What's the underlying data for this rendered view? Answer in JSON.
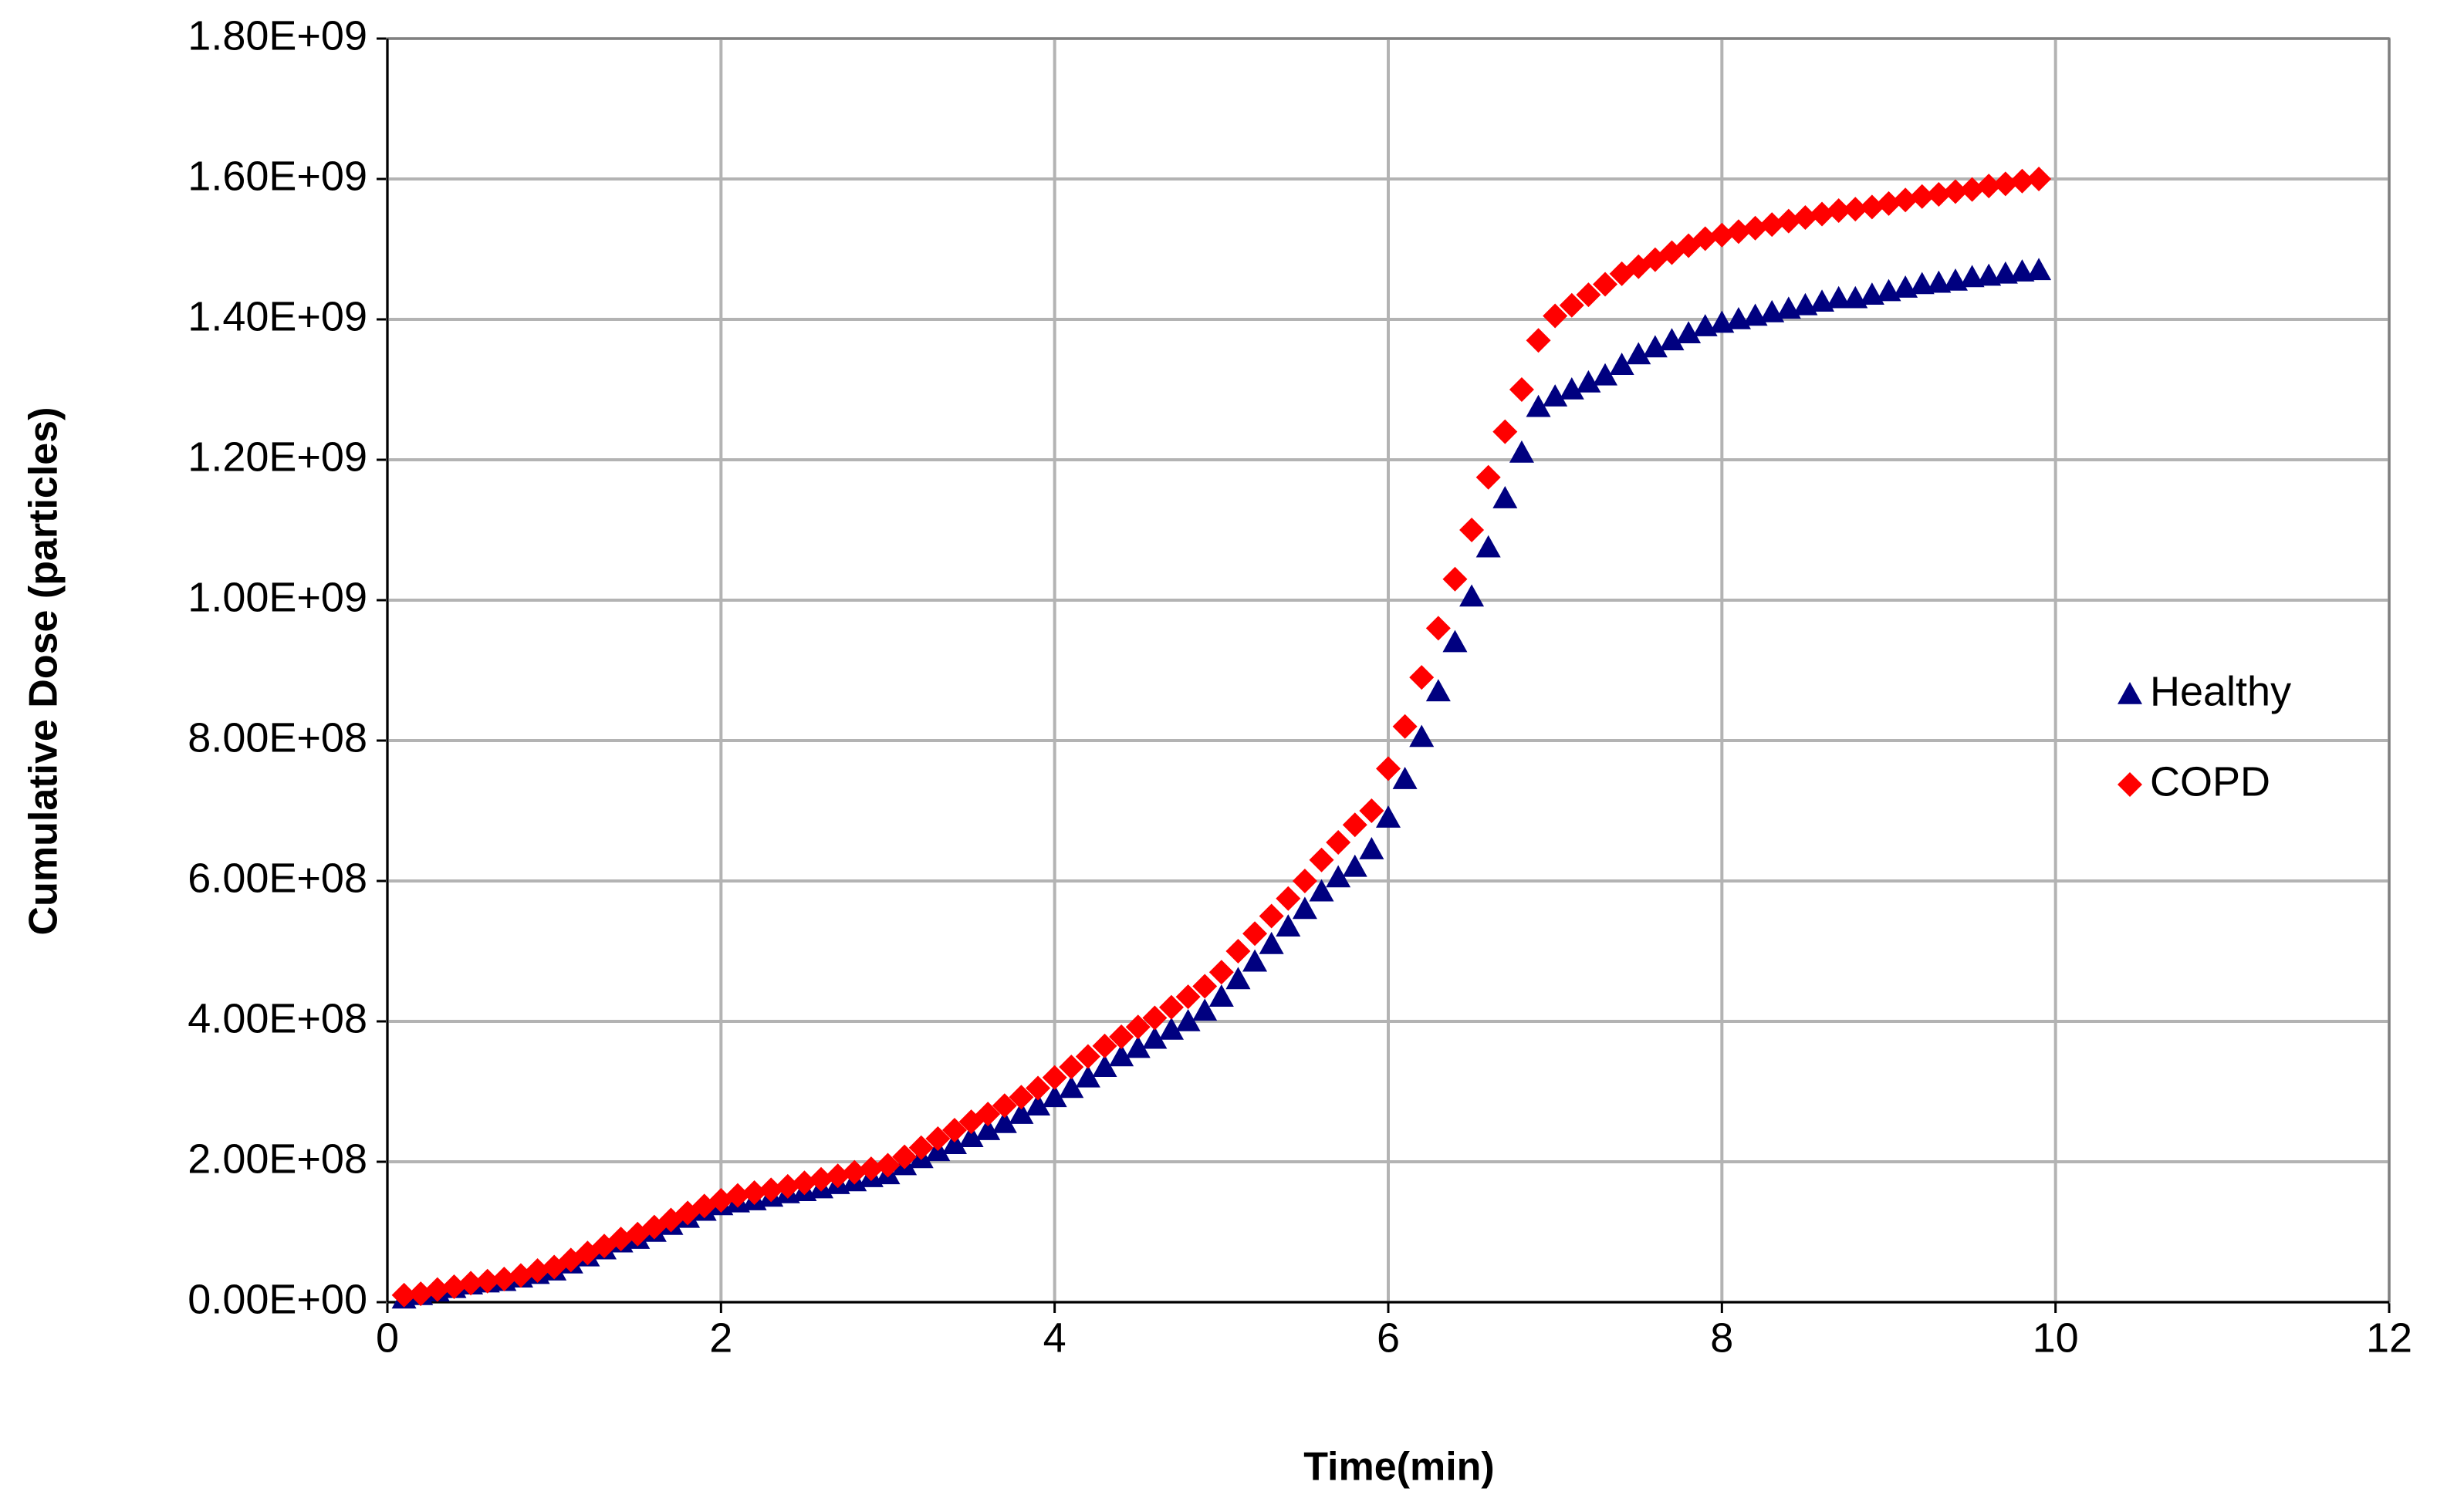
{
  "chart_data": {
    "type": "scatter",
    "x_label": "Time(min)",
    "y_label": "Cumulative  Dose  (particles)",
    "x": [
      0.1,
      0.2,
      0.3,
      0.4,
      0.5,
      0.6,
      0.7,
      0.8,
      0.9,
      1.0,
      1.1,
      1.2,
      1.3,
      1.4,
      1.5,
      1.6,
      1.7,
      1.8,
      1.9,
      2.0,
      2.1,
      2.2,
      2.3,
      2.4,
      2.5,
      2.6,
      2.7,
      2.8,
      2.9,
      3.0,
      3.1,
      3.2,
      3.3,
      3.4,
      3.5,
      3.6,
      3.7,
      3.8,
      3.9,
      4.0,
      4.1,
      4.2,
      4.3,
      4.4,
      4.5,
      4.6,
      4.7,
      4.8,
      4.9,
      5.0,
      5.1,
      5.2,
      5.3,
      5.4,
      5.5,
      5.6,
      5.7,
      5.8,
      5.9,
      6.0,
      6.1,
      6.2,
      6.3,
      6.4,
      6.5,
      6.6,
      6.7,
      6.8,
      6.9,
      7.0,
      7.1,
      7.2,
      7.3,
      7.4,
      7.5,
      7.6,
      7.7,
      7.8,
      7.9,
      8.0,
      8.1,
      8.2,
      8.3,
      8.4,
      8.5,
      8.6,
      8.7,
      8.8,
      8.9,
      9.0,
      9.1,
      9.2,
      9.3,
      9.4,
      9.5,
      9.6,
      9.7,
      9.8,
      9.9
    ],
    "series": [
      {
        "name": "Healthy",
        "color": "#000080",
        "marker": "triangle",
        "values": [
          5000000.0,
          10000000.0,
          15000000.0,
          20000000.0,
          25000000.0,
          28000000.0,
          30000000.0,
          35000000.0,
          40000000.0,
          45000000.0,
          55000000.0,
          65000000.0,
          75000000.0,
          85000000.0,
          90000000.0,
          100000000.0,
          110000000.0,
          120000000.0,
          130000000.0,
          138000000.0,
          142000000.0,
          145000000.0,
          150000000.0,
          155000000.0,
          158000000.0,
          162000000.0,
          168000000.0,
          172000000.0,
          178000000.0,
          182000000.0,
          195000000.0,
          205000000.0,
          215000000.0,
          225000000.0,
          235000000.0,
          245000000.0,
          255000000.0,
          268000000.0,
          280000000.0,
          292000000.0,
          305000000.0,
          320000000.0,
          335000000.0,
          350000000.0,
          362000000.0,
          375000000.0,
          388000000.0,
          400000000.0,
          415000000.0,
          435000000.0,
          460000000.0,
          485000000.0,
          510000000.0,
          535000000.0,
          560000000.0,
          585000000.0,
          605000000.0,
          620000000.0,
          645000000.0,
          690000000.0,
          745000000.0,
          805000000.0,
          870000000.0,
          940000000.0,
          1005000000.0,
          1075000000.0,
          1145000000.0,
          1210000000.0,
          1275000000.0,
          1290000000.0,
          1300000000.0,
          1310000000.0,
          1320000000.0,
          1335000000.0,
          1350000000.0,
          1360000000.0,
          1370000000.0,
          1380000000.0,
          1390000000.0,
          1395000000.0,
          1400000000.0,
          1405000000.0,
          1410000000.0,
          1415000000.0,
          1420000000.0,
          1425000000.0,
          1430000000.0,
          1430000000.0,
          1435000000.0,
          1440000000.0,
          1445000000.0,
          1450000000.0,
          1452000000.0,
          1455000000.0,
          1460000000.0,
          1462000000.0,
          1465000000.0,
          1468000000.0,
          1470000000.0
        ]
      },
      {
        "name": "COPD",
        "color": "#ff0000",
        "marker": "diamond",
        "values": [
          10000000.0,
          12000000.0,
          18000000.0,
          22000000.0,
          27000000.0,
          30000000.0,
          33000000.0,
          38000000.0,
          45000000.0,
          50000000.0,
          60000000.0,
          70000000.0,
          80000000.0,
          90000000.0,
          97000000.0,
          107000000.0,
          117000000.0,
          127000000.0,
          137000000.0,
          145000000.0,
          152000000.0,
          156000000.0,
          160000000.0,
          165000000.0,
          170000000.0,
          175000000.0,
          180000000.0,
          185000000.0,
          190000000.0,
          195000000.0,
          207000000.0,
          220000000.0,
          233000000.0,
          245000000.0,
          257000000.0,
          268000000.0,
          280000000.0,
          292000000.0,
          305000000.0,
          320000000.0,
          335000000.0,
          350000000.0,
          365000000.0,
          378000000.0,
          392000000.0,
          405000000.0,
          420000000.0,
          435000000.0,
          450000000.0,
          470000000.0,
          500000000.0,
          525000000.0,
          550000000.0,
          575000000.0,
          600000000.0,
          630000000.0,
          655000000.0,
          680000000.0,
          700000000.0,
          760000000.0,
          820000000.0,
          890000000.0,
          960000000.0,
          1030000000.0,
          1100000000.0,
          1175000000.0,
          1240000000.0,
          1300000000.0,
          1370000000.0,
          1405000000.0,
          1420000000.0,
          1435000000.0,
          1450000000.0,
          1465000000.0,
          1475000000.0,
          1485000000.0,
          1495000000.0,
          1505000000.0,
          1515000000.0,
          1520000000.0,
          1525000000.0,
          1530000000.0,
          1535000000.0,
          1540000000.0,
          1545000000.0,
          1550000000.0,
          1555000000.0,
          1557000000.0,
          1560000000.0,
          1565000000.0,
          1570000000.0,
          1575000000.0,
          1578000000.0,
          1582000000.0,
          1585000000.0,
          1590000000.0,
          1593000000.0,
          1597000000.0,
          1600000000.0
        ]
      }
    ],
    "xlim": [
      0,
      12
    ],
    "xticks": [
      0,
      2,
      4,
      6,
      8,
      10,
      12
    ],
    "ylim": [
      0,
      1800000000.0
    ],
    "yticks": [
      {
        "value": 0,
        "label": "0.00E+00"
      },
      {
        "value": 200000000.0,
        "label": "2.00E+08"
      },
      {
        "value": 400000000.0,
        "label": "4.00E+08"
      },
      {
        "value": 600000000.0,
        "label": "6.00E+08"
      },
      {
        "value": 800000000.0,
        "label": "8.00E+08"
      },
      {
        "value": 1000000000.0,
        "label": "1.00E+09"
      },
      {
        "value": 1200000000.0,
        "label": "1.20E+09"
      },
      {
        "value": 1400000000.0,
        "label": "1.40E+09"
      },
      {
        "value": 1600000000.0,
        "label": "1.60E+09"
      },
      {
        "value": 1800000000.0,
        "label": "1.80E+09"
      }
    ],
    "grid": true,
    "legend": "right"
  }
}
